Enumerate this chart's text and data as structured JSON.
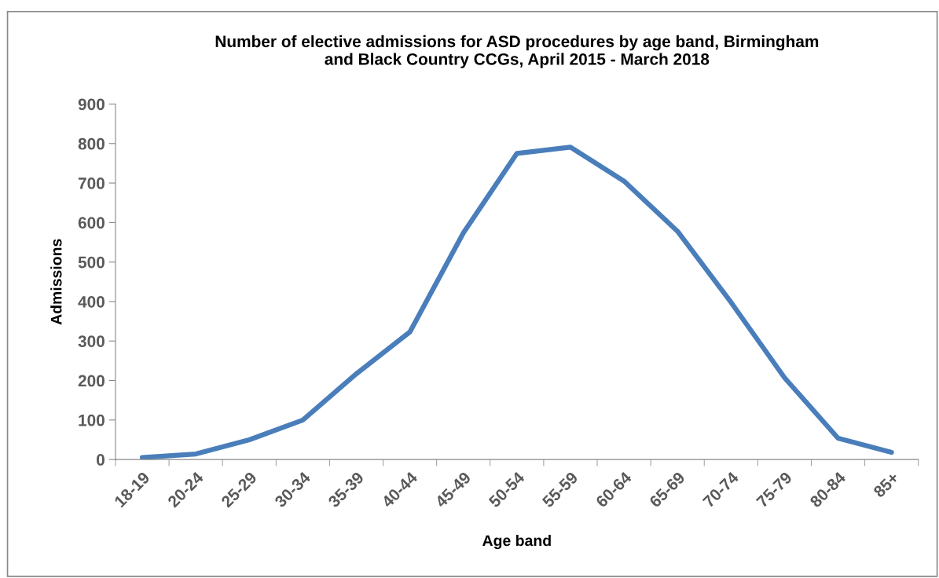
{
  "chart_data": {
    "type": "line",
    "title": "Number of elective admissions for ASD procedures by age band, Birmingham\nand Black Country CCGs, April 2015 - March 2018",
    "xlabel": "Age band",
    "ylabel": "Admissions",
    "categories": [
      "18-19",
      "20-24",
      "25-29",
      "30-34",
      "35-39",
      "40-44",
      "45-49",
      "50-54",
      "55-59",
      "60-64",
      "65-69",
      "70-74",
      "75-79",
      "80-84",
      "85+"
    ],
    "series": [
      {
        "color": "#4a7ebb",
        "values": [
          5,
          14,
          50,
          100,
          217,
          323,
          574,
          775,
          791,
          705,
          578,
          398,
          207,
          54,
          18
        ]
      }
    ],
    "ylim": [
      0,
      900
    ],
    "yticks": [
      0,
      100,
      200,
      300,
      400,
      500,
      600,
      700,
      800,
      900
    ],
    "grid": false,
    "marker": "none",
    "line_style": "solid"
  }
}
